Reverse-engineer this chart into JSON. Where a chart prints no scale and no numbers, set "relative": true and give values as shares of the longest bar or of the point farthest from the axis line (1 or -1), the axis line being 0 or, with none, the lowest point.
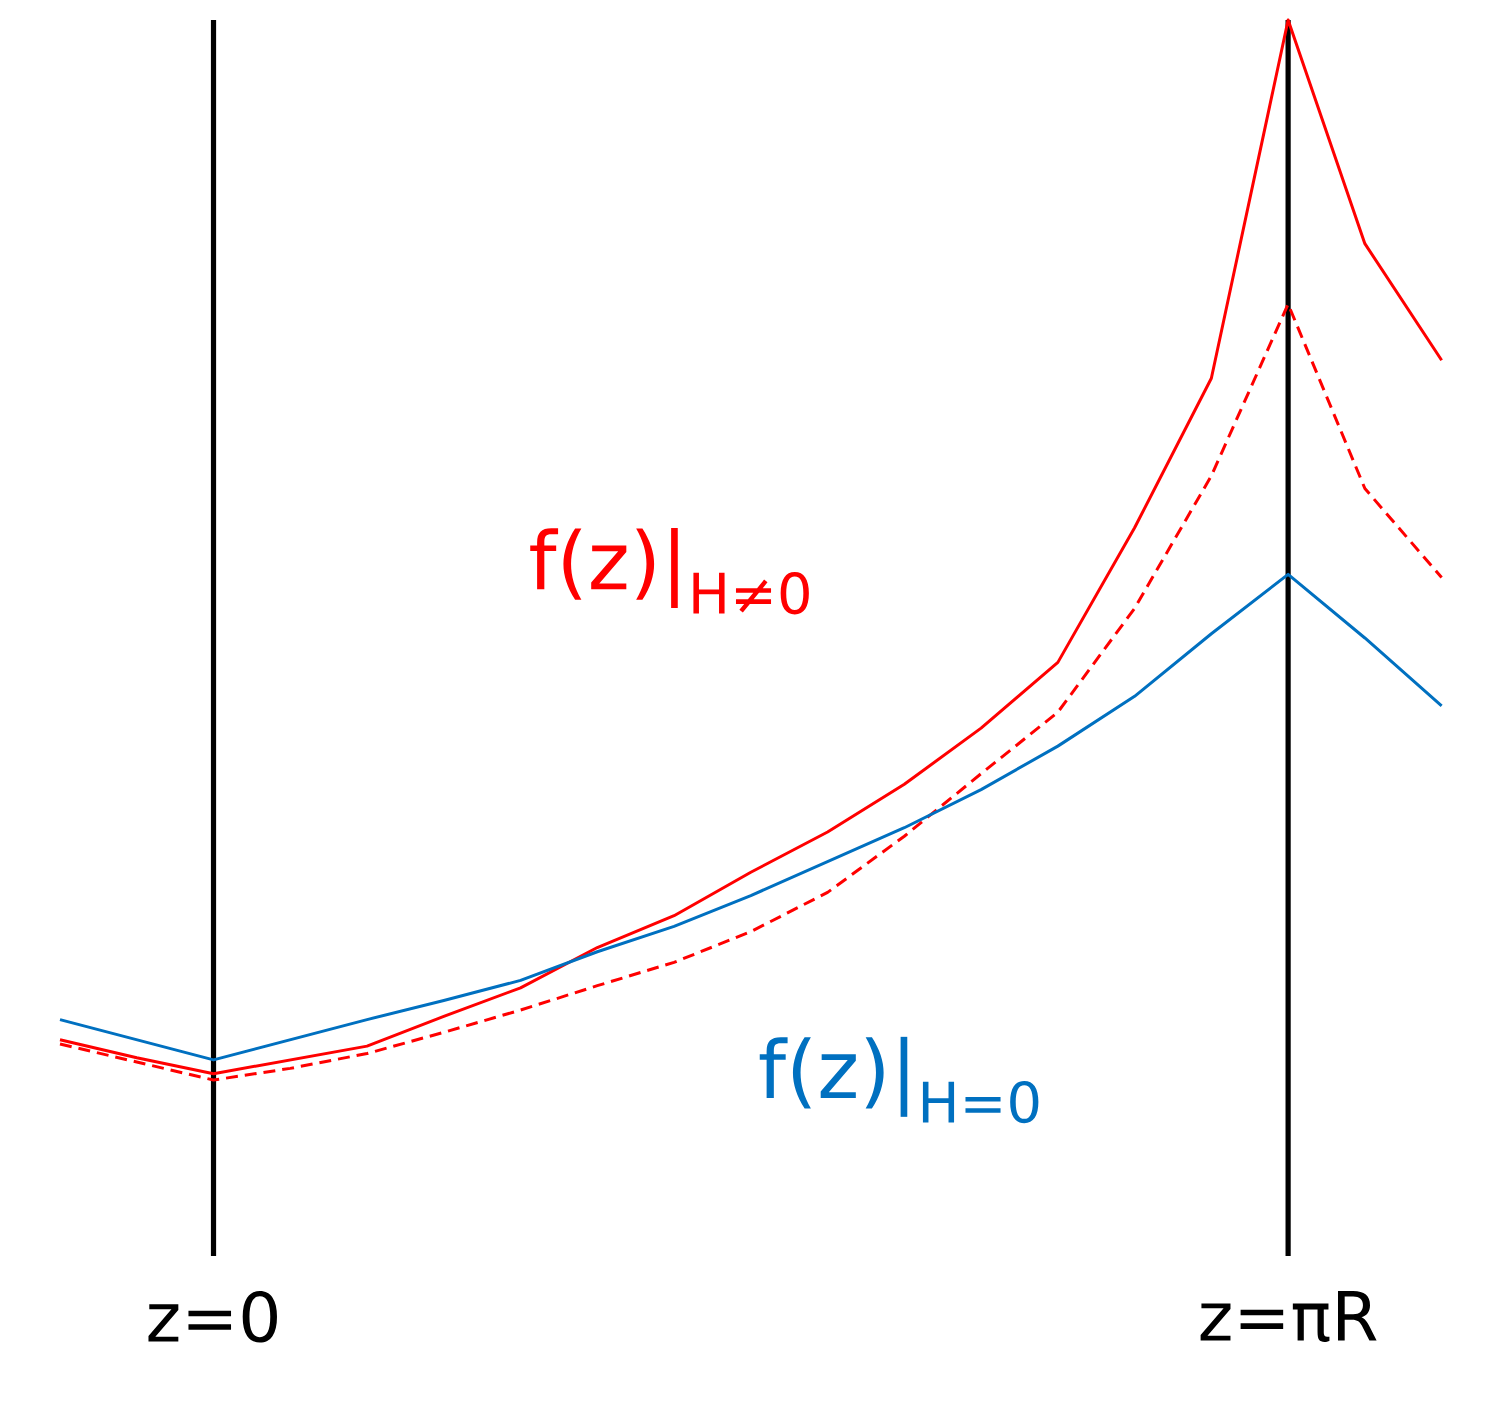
{
  "chart_data": {
    "type": "line",
    "relative": true,
    "line_style": "solid",
    "marker": "none",
    "categories": [
      null,
      null,
      "z=0",
      null,
      null,
      null,
      null,
      null,
      null,
      null,
      null,
      null,
      null,
      null,
      null,
      null,
      "z=πR",
      null,
      null
    ],
    "ref_lines": [
      {
        "axis": "x",
        "value": "z=0",
        "color": "#000000"
      },
      {
        "axis": "x",
        "value": "z=πR",
        "color": "#000000"
      }
    ],
    "series": [
      {
        "name": "f(z)|$_{H≠0}$",
        "color": "#ff0000",
        "values": [
          0.038,
          0.021,
          0.006,
          0.019,
          0.032,
          0.06,
          0.087,
          0.125,
          0.155,
          0.196,
          0.234,
          0.279,
          0.332,
          0.394,
          0.521,
          0.662,
          1.0,
          0.789,
          0.679
        ]
      },
      {
        "color": "#ff0000",
        "line_style": "dashed",
        "values": [
          0.034,
          0.017,
          0,
          0.011,
          0.025,
          0.045,
          0.066,
          0.089,
          0.111,
          0.14,
          0.177,
          0.23,
          0.289,
          0.347,
          0.445,
          0.57,
          0.732,
          0.558,
          0.474
        ]
      },
      {
        "name": "f(z)|$_{H=0}$",
        "color": "#0070c0",
        "values": [
          0.057,
          0.038,
          0.019,
          0.038,
          0.057,
          0.075,
          0.094,
          0.121,
          0.145,
          0.174,
          0.206,
          0.238,
          0.274,
          0.315,
          0.362,
          0.421,
          0.477,
          0.417,
          0.353
        ]
      }
    ]
  }
}
